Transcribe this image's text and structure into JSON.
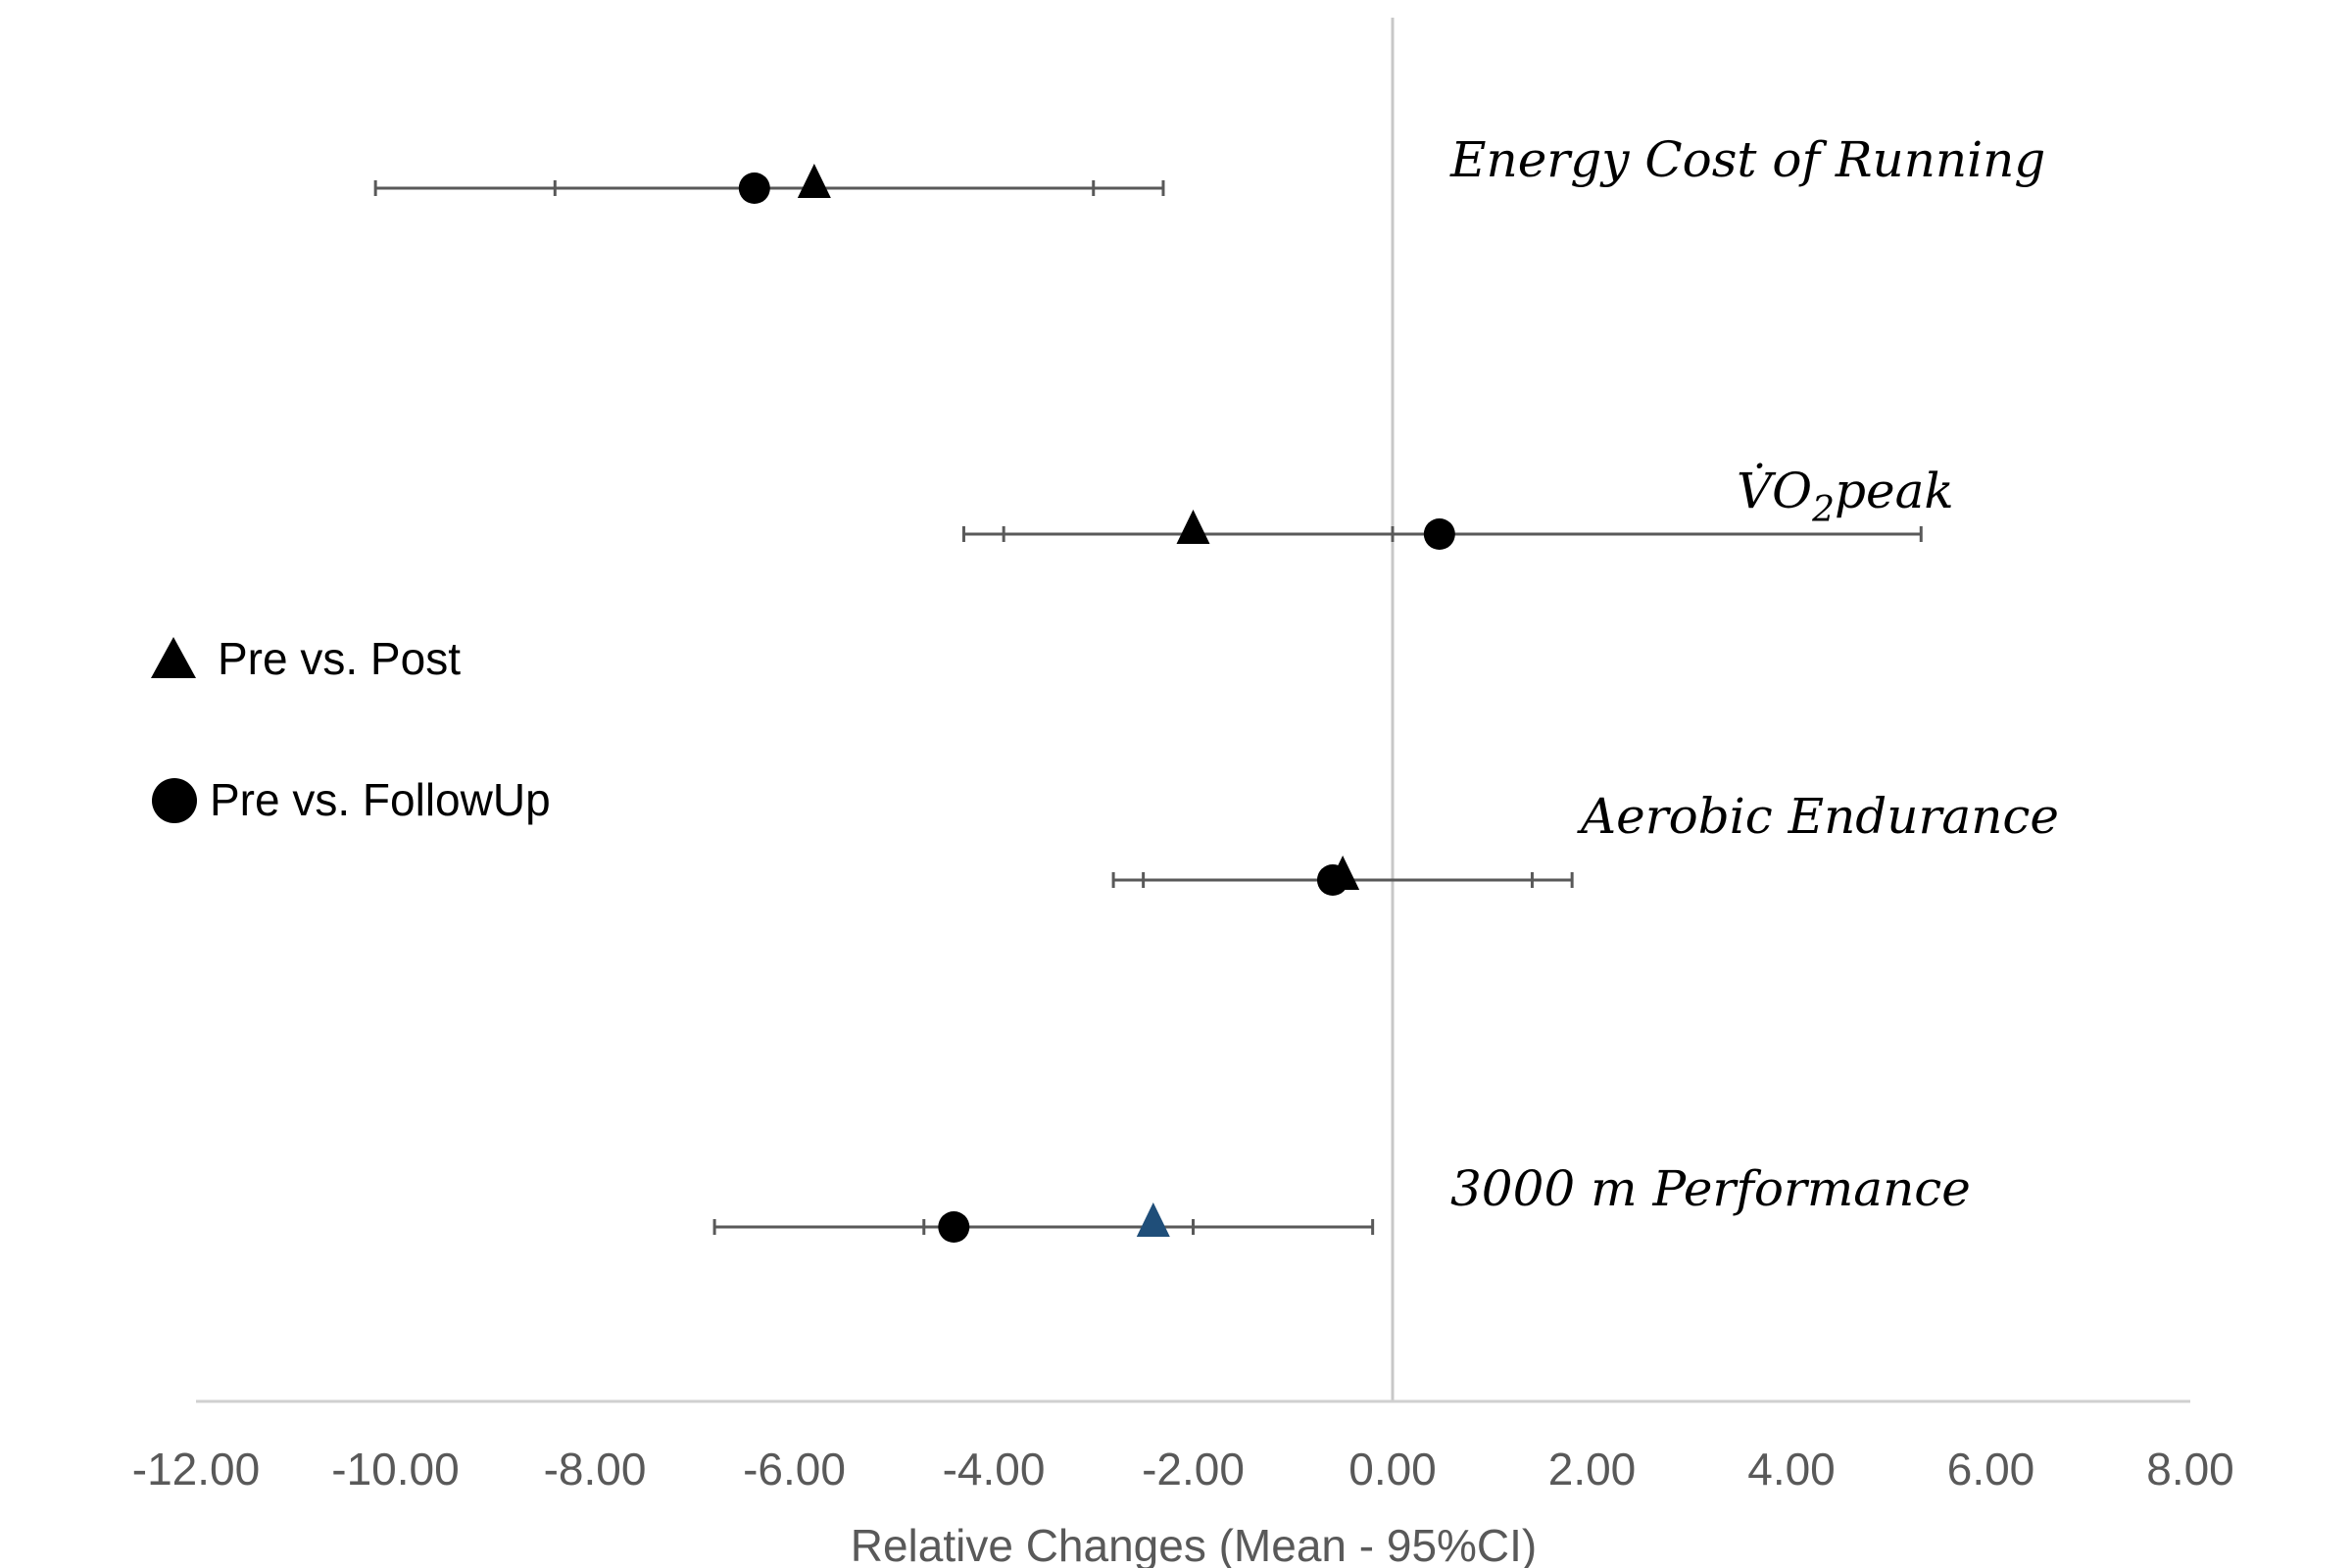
{
  "chart_data": {
    "type": "forest",
    "xlabel": "Relative Changes (Mean - 95%CI)",
    "xlim": [
      -12,
      8
    ],
    "xticks": [
      -12,
      -10,
      -8,
      -6,
      -4,
      -2,
      0,
      2,
      4,
      6,
      8
    ],
    "tick_labels": [
      "-12.00",
      "-10.00",
      "-8.00",
      "-6.00",
      "-4.00",
      "-2.00",
      "0.00",
      "2.00",
      "4.00",
      "6.00",
      "8.00"
    ],
    "reference_line": 0,
    "legend": {
      "placement": "left",
      "entries": [
        {
          "name": "Pre vs. Post",
          "marker": "triangle"
        },
        {
          "name": "Pre vs. FollowUp",
          "marker": "circle"
        }
      ]
    },
    "outcomes": [
      {
        "label": "Energy Cost of Running",
        "pre_vs_post": {
          "mean": -5.8,
          "ci": [
            -8.4,
            -3.0
          ]
        },
        "pre_vs_followup": {
          "mean": -6.4,
          "ci": [
            -10.2,
            -2.3
          ]
        }
      },
      {
        "label": "VO2peak",
        "label_main": "V̇O",
        "label_sub": "2",
        "label_tail": "peak",
        "pre_vs_post": {
          "mean": -2.0,
          "ci": [
            -3.9,
            0.0
          ]
        },
        "pre_vs_followup": {
          "mean": 0.47,
          "ci": [
            -4.3,
            5.3
          ]
        }
      },
      {
        "label": "Aerobic Endurance",
        "pre_vs_post": {
          "mean": -0.5,
          "ci": [
            -2.5,
            1.4
          ]
        },
        "pre_vs_followup": {
          "mean": -0.6,
          "ci": [
            -2.8,
            1.8
          ]
        }
      },
      {
        "label": "3000 m Performance",
        "pre_vs_post": {
          "mean": -2.4,
          "ci": [
            -4.7,
            -0.2
          ]
        },
        "pre_vs_followup": {
          "mean": -4.4,
          "ci": [
            -6.8,
            -2.0
          ]
        }
      }
    ],
    "colors": {
      "marker": "#000000",
      "highlight_marker": "#1f4e79",
      "whisker": "#595959",
      "axis": "#d0d0d0",
      "zero_line": "#c8c8c8"
    }
  }
}
